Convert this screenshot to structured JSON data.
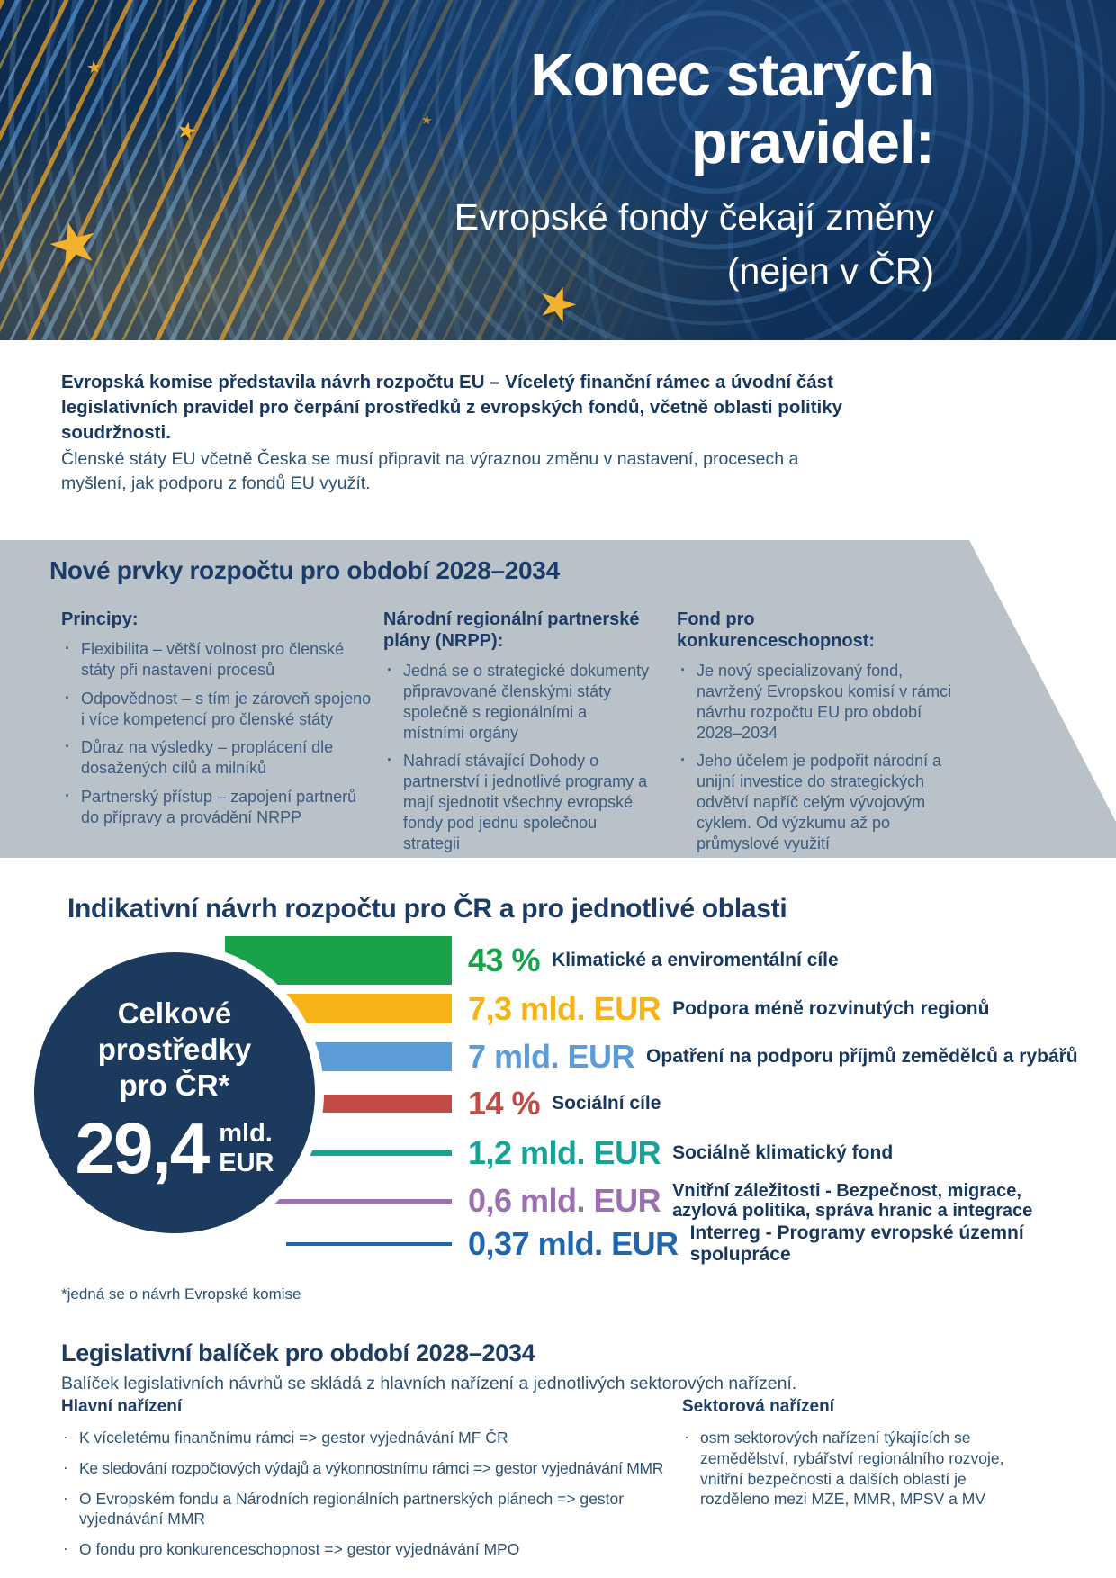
{
  "colors": {
    "navy": "#17375e",
    "panel_gray": "#b9c1c9",
    "hero_star_yellow": "#f2b22e"
  },
  "hero": {
    "title_line1": "Konec starých",
    "title_line2": "pravidel:",
    "subtitle_line1": "Evropské fondy čekají změny",
    "subtitle_line2": "(nejen v ČR)"
  },
  "intro": {
    "lead": "Evropská komise představila návrh rozpočtu EU – Víceletý finanční rámec a úvodní část legislativních pravidel pro čerpání prostředků z evropských fondů, včetně oblasti politiky soudržnosti.",
    "body": "Členské státy EU včetně Česka se musí připravit na výraznou změnu v nastavení, procesech a myšlení, jak podporu z fondů EU využít."
  },
  "new_elements": {
    "heading": "Nové prvky rozpočtu pro období 2028–2034",
    "columns": [
      {
        "title": "Principy:",
        "bullets": [
          "Flexibilita – větší volnost pro členské státy při nastavení procesů",
          "Odpovědnost – s tím je zároveň spojeno i více kompetencí pro členské státy",
          "Důraz na výsledky – proplácení dle dosažených cílů a milníků",
          "Partnerský přístup – zapojení partnerů do přípravy a provádění NRPP"
        ]
      },
      {
        "title": "Národní regionální partnerské plány (NRPP):",
        "bullets": [
          "Jedná se o strategické dokumenty připravované členskými státy společně s regionálními a místními orgány",
          "Nahradí stávající Dohody o partnerství i jednotlivé programy a mají sjednotit všechny evropské fondy pod jednu společnou strategii"
        ]
      },
      {
        "title": "Fond pro konkurenceschopnost:",
        "bullets": [
          "Je nový specializovaný fond, navržený Evropskou komisí v rámci návrhu rozpočtu EU pro období 2028–2034",
          "Jeho účelem je podpořit národní a unijní investice do strategických odvětví napříč celým vývojovým cyklem. Od výzkumu až po průmyslové využití"
        ]
      }
    ]
  },
  "budget": {
    "total_label_lines": [
      "Celkové",
      "prostředky",
      "pro ČR*"
    ],
    "total_value": "29,4",
    "total_unit_lines": [
      "mld.",
      "EUR"
    ]
  },
  "chart_data": {
    "type": "bar",
    "title": "Indikativní návrh rozpočtu pro ČR a pro jednotlivé oblasti",
    "total": {
      "label": "Celkové prostředky pro ČR*",
      "value_mld_eur": 29.4,
      "display": "29,4 mld. EUR"
    },
    "footnote": "*jedná se o návrh Evropské komise",
    "items": [
      {
        "value": "43 %",
        "percent": 43,
        "label": "Klimatické a enviromentální cíle",
        "color": "#1aa24b"
      },
      {
        "value": "7,3 mld. EUR",
        "amount_mld_eur": 7.3,
        "label": "Podpora méně rozvinutých regionů",
        "color": "#f5b317"
      },
      {
        "value": "7 mld. EUR",
        "amount_mld_eur": 7,
        "label": "Opatření na podporu příjmů zemědělců a rybářů",
        "color": "#5b9cd6"
      },
      {
        "value": "14 %",
        "percent": 14,
        "label": "Sociální cíle",
        "color": "#c14b45"
      },
      {
        "value": "1,2 mld. EUR",
        "amount_mld_eur": 1.2,
        "label": "Sociálně klimatický fond",
        "color": "#17a295"
      },
      {
        "value": "0,6 mld. EUR",
        "amount_mld_eur": 0.6,
        "label": "Vnitřní záležitosti - Bezpečnost, migrace, azylová politika, správa hranic a integrace",
        "color": "#9b6fb0"
      },
      {
        "value": "0,37 mld. EUR",
        "amount_mld_eur": 0.37,
        "label": "Interreg - Programy evropské územní spolupráce",
        "color": "#1f66ae"
      }
    ]
  },
  "legislative": {
    "heading": "Legislativní balíček pro období 2028–2034",
    "subtitle": "Balíček legislativních návrhů se skládá z hlavních nařízení a jednotlivých sektorových nařízení.",
    "main": {
      "title": "Hlavní nařízení",
      "bullets": [
        "K víceletému finančnímu rámci => gestor vyjednávání MF ČR",
        "Ke sledování rozpočtových výdajů a výkonnostnímu rámci => gestor vyjednávání MMR",
        "O Evropském fondu a Národních regionálních partnerských plánech => gestor vyjednávání MMR",
        "O fondu pro konkurenceschopnost => gestor vyjednávání MPO"
      ]
    },
    "sector": {
      "title": "Sektorová nařízení",
      "bullets": [
        "osm sektorových nařízení týkajících se zemědělství, rybářství regionálního rozvoje, vnitřní bezpečnosti a dalších oblastí je rozděleno mezi MZE, MMR, MPSV a MV"
      ]
    }
  }
}
